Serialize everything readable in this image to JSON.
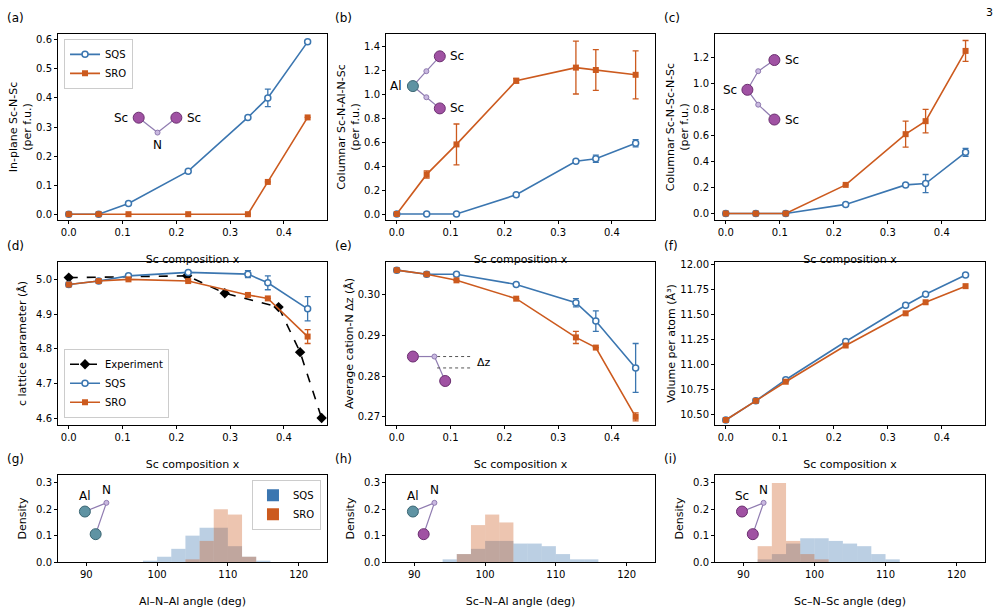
{
  "page_number": "3",
  "chart_data": [
    {
      "label": "(a)",
      "type": "line",
      "x_label": "Sc composition x",
      "y_label": "In-plane Sc-N-Sc\n(per f.u.)",
      "xlim": [
        -0.02,
        0.48
      ],
      "xticks": [
        {
          "value": 0,
          "label": "0.0"
        },
        0.1,
        0.2,
        0.3,
        0.4
      ],
      "ylim": [
        -0.02,
        0.62
      ],
      "yticks": [
        {
          "value": 0,
          "label": "0.0"
        },
        0.1,
        0.2,
        0.3,
        0.4,
        0.5,
        0.6
      ],
      "x": [
        0,
        0.0556,
        0.111,
        0.222,
        0.333,
        0.37,
        0.444
      ],
      "legend": "upper left",
      "inset": [
        "Sc",
        "N",
        "Sc"
      ],
      "series": [
        {
          "name": "SQS",
          "color": "#3b76b0",
          "marker": "open_circle",
          "line_style": "solid",
          "values": [
            0,
            0,
            0.037,
            0.148,
            0.333,
            0.4,
            0.593
          ],
          "errors": [
            0,
            0,
            0,
            0,
            0,
            0.03,
            0
          ]
        },
        {
          "name": "SRO",
          "color": "#cc5a1e",
          "marker": "square",
          "line_style": "solid",
          "values": [
            0,
            0,
            0,
            0,
            0,
            0.111,
            0.333
          ],
          "errors": [
            0,
            0,
            0,
            0,
            0,
            0,
            0
          ]
        }
      ]
    },
    {
      "label": "(b)",
      "type": "line",
      "x_label": "Sc composition x",
      "y_label": "Columnar Sc-N-Al-N-Sc\n(per f.u.)",
      "xlim": [
        -0.02,
        0.48
      ],
      "xticks": [
        {
          "value": 0,
          "label": "0.0"
        },
        0.1,
        0.2,
        0.3,
        0.4
      ],
      "ylim": [
        -0.05,
        1.5
      ],
      "yticks": [
        {
          "value": 0,
          "label": "0.0"
        },
        0.2,
        0.4,
        0.6,
        0.8,
        {
          "value": 1,
          "label": "1.0"
        },
        1.2,
        1.4
      ],
      "x": [
        0,
        0.0556,
        0.111,
        0.222,
        0.333,
        0.37,
        0.444
      ],
      "inset": [
        "Al",
        "Sc",
        "Sc"
      ],
      "series": [
        {
          "name": "SQS",
          "color": "#3b76b0",
          "marker": "open_circle",
          "line_style": "solid",
          "values": [
            0,
            0,
            0,
            0.16,
            0.44,
            0.46,
            0.59
          ],
          "errors": [
            0,
            0,
            0,
            0,
            0,
            0.03,
            0.03
          ]
        },
        {
          "name": "SRO",
          "color": "#cc5a1e",
          "marker": "square",
          "line_style": "solid",
          "values": [
            0,
            0.33,
            0.58,
            1.11,
            1.22,
            1.2,
            1.16
          ],
          "errors": [
            0,
            0.03,
            0.17,
            0.02,
            0.22,
            0.17,
            0.2
          ]
        }
      ]
    },
    {
      "label": "(c)",
      "type": "line",
      "x_label": "Sc composition x",
      "y_label": "Columnar Sc-N-Sc-N-Sc\n(per f.u.)",
      "xlim": [
        -0.02,
        0.48
      ],
      "xticks": [
        {
          "value": 0,
          "label": "0.0"
        },
        0.1,
        0.2,
        0.3,
        0.4
      ],
      "ylim": [
        -0.05,
        1.38
      ],
      "yticks": [
        {
          "value": 0,
          "label": "0.0"
        },
        0.2,
        0.4,
        0.6,
        0.8,
        {
          "value": 1,
          "label": "1.0"
        },
        1.2
      ],
      "x": [
        0,
        0.0556,
        0.111,
        0.222,
        0.333,
        0.37,
        0.444
      ],
      "inset": [
        "Sc",
        "Sc",
        "Sc"
      ],
      "series": [
        {
          "name": "SQS",
          "color": "#3b76b0",
          "marker": "open_circle",
          "line_style": "solid",
          "values": [
            0,
            0,
            0,
            0.07,
            0.22,
            0.23,
            0.47
          ],
          "errors": [
            0,
            0,
            0,
            0,
            0,
            0.07,
            0.03
          ]
        },
        {
          "name": "SRO",
          "color": "#cc5a1e",
          "marker": "square",
          "line_style": "solid",
          "values": [
            0,
            0,
            0,
            0.22,
            0.61,
            0.71,
            1.25
          ],
          "errors": [
            0,
            0,
            0,
            0,
            0.1,
            0.09,
            0.08
          ]
        }
      ]
    },
    {
      "label": "(d)",
      "type": "line",
      "x_label": "Sc composition x",
      "y_label": "c lattice parameter (Å)",
      "xlim": [
        -0.02,
        0.48
      ],
      "xticks": [
        {
          "value": 0,
          "label": "0.0"
        },
        0.1,
        0.2,
        0.3,
        0.4
      ],
      "ylim": [
        4.58,
        5.05
      ],
      "yticks": [
        4.6,
        4.7,
        4.8,
        4.9,
        {
          "value": 5,
          "label": "5.0"
        }
      ],
      "x": [
        0,
        0.0556,
        0.111,
        0.222,
        0.333,
        0.37,
        0.444
      ],
      "legend": "lower left",
      "series": [
        {
          "name": "Experiment",
          "color": "#000000",
          "marker": "diamond",
          "line_style": "dashed",
          "x": [
            0,
            0.22,
            0.29,
            0.39,
            0.43,
            0.47
          ],
          "values": [
            5.005,
            5.01,
            4.96,
            4.92,
            4.79,
            4.6
          ]
        },
        {
          "name": "SQS",
          "color": "#3b76b0",
          "marker": "open_circle",
          "line_style": "solid",
          "values": [
            4.985,
            4.995,
            5.01,
            5.02,
            5.015,
            4.99,
            4.915
          ],
          "errors": [
            0,
            0,
            0,
            0,
            0.01,
            0.02,
            0.035
          ]
        },
        {
          "name": "SRO",
          "color": "#cc5a1e",
          "marker": "square",
          "line_style": "solid",
          "values": [
            4.985,
            4.995,
            5.0,
            4.995,
            4.955,
            4.945,
            4.835
          ],
          "errors": [
            0,
            0,
            0,
            0,
            0,
            0,
            0.02
          ]
        }
      ]
    },
    {
      "label": "(e)",
      "type": "line",
      "x_label": "Sc composition x",
      "y_label": "Average cation-N Δz (Å)",
      "xlim": [
        -0.02,
        0.48
      ],
      "xticks": [
        {
          "value": 0,
          "label": "0.0"
        },
        0.1,
        0.2,
        0.3,
        0.4
      ],
      "ylim": [
        0.268,
        0.308
      ],
      "yticks": [
        0.27,
        0.28,
        0.29,
        {
          "value": 0.3,
          "label": "0.30"
        }
      ],
      "x": [
        0,
        0.0556,
        0.111,
        0.222,
        0.333,
        0.37,
        0.444
      ],
      "inset": [
        "Δz"
      ],
      "series": [
        {
          "name": "SQS",
          "color": "#3b76b0",
          "marker": "open_circle",
          "line_style": "solid",
          "values": [
            0.306,
            0.305,
            0.305,
            0.3025,
            0.298,
            0.2935,
            0.282
          ],
          "errors": [
            0,
            0,
            0,
            0,
            0.001,
            0.0025,
            0.006
          ]
        },
        {
          "name": "SRO",
          "color": "#cc5a1e",
          "marker": "square",
          "line_style": "solid",
          "values": [
            0.306,
            0.305,
            0.3035,
            0.299,
            0.2895,
            0.287,
            0.27
          ],
          "errors": [
            0,
            0,
            0,
            0,
            0.0015,
            0,
            0.001
          ]
        }
      ]
    },
    {
      "label": "(f)",
      "type": "line",
      "x_label": "Sc composition x",
      "y_label": "Volume per atom (Å³)",
      "xlim": [
        -0.02,
        0.48
      ],
      "xticks": [
        {
          "value": 0,
          "label": "0.0"
        },
        0.1,
        0.2,
        0.3,
        0.4
      ],
      "ylim": [
        10.4,
        12.02
      ],
      "yticks": [
        {
          "value": 10.5,
          "label": "10.50"
        },
        10.75,
        {
          "value": 11,
          "label": "11.00"
        },
        11.25,
        {
          "value": 11.5,
          "label": "11.50"
        },
        11.75,
        {
          "value": 12,
          "label": "12.00"
        }
      ],
      "x": [
        0,
        0.0556,
        0.111,
        0.222,
        0.333,
        0.37,
        0.444
      ],
      "series": [
        {
          "name": "SQS",
          "color": "#3b76b0",
          "marker": "open_circle",
          "line_style": "solid",
          "values": [
            10.45,
            10.64,
            10.85,
            11.23,
            11.59,
            11.7,
            11.89
          ]
        },
        {
          "name": "SRO",
          "color": "#cc5a1e",
          "marker": "square",
          "line_style": "solid",
          "values": [
            10.45,
            10.64,
            10.83,
            11.19,
            11.51,
            11.62,
            11.78
          ]
        }
      ]
    },
    {
      "label": "(g)",
      "type": "histogram",
      "x_label": "Al–N–Al angle (deg)",
      "y_label": "Density",
      "xlim": [
        86,
        124
      ],
      "xticks": [
        90,
        100,
        110,
        120
      ],
      "ylim": [
        0,
        0.33
      ],
      "yticks": [
        {
          "value": 0,
          "label": "0.0"
        },
        0.1,
        0.2,
        0.3
      ],
      "bins": [
        98,
        100,
        102,
        104,
        106,
        108,
        110,
        112,
        114,
        116
      ],
      "legend": "upper right",
      "inset": [
        "Al",
        "N"
      ],
      "series": [
        {
          "name": "SQS",
          "color": "#3b76b0",
          "values": [
            0.005,
            0.02,
            0.05,
            0.1,
            0.13,
            0.13,
            0.06,
            0.02,
            0.005
          ]
        },
        {
          "name": "SRO",
          "color": "#cc5a1e",
          "values": [
            0,
            0,
            0,
            0.01,
            0.08,
            0.2,
            0.18,
            0.02,
            0
          ]
        }
      ]
    },
    {
      "label": "(h)",
      "type": "histogram",
      "x_label": "Sc–N–Al angle (deg)",
      "y_label": "Density",
      "xlim": [
        86,
        124
      ],
      "xticks": [
        90,
        100,
        110,
        120
      ],
      "ylim": [
        0,
        0.33
      ],
      "yticks": [
        {
          "value": 0,
          "label": "0.0"
        },
        0.1,
        0.2,
        0.3
      ],
      "bins": [
        94,
        96,
        98,
        100,
        102,
        104,
        106,
        108,
        110,
        112,
        114,
        116
      ],
      "inset": [
        "Al",
        "N"
      ],
      "series": [
        {
          "name": "SQS",
          "color": "#3b76b0",
          "values": [
            0.01,
            0.03,
            0.05,
            0.08,
            0.08,
            0.07,
            0.07,
            0.06,
            0.03,
            0.01,
            0.01
          ]
        },
        {
          "name": "SRO",
          "color": "#cc5a1e",
          "values": [
            0,
            0.03,
            0.14,
            0.18,
            0.15,
            0,
            0,
            0,
            0,
            0,
            0
          ]
        }
      ]
    },
    {
      "label": "(i)",
      "type": "histogram",
      "x_label": "Sc–N–Sc angle (deg)",
      "y_label": "Density",
      "xlim": [
        86,
        124
      ],
      "xticks": [
        90,
        100,
        110,
        120
      ],
      "ylim": [
        0,
        0.33
      ],
      "yticks": [
        {
          "value": 0,
          "label": "0.0"
        },
        0.1,
        0.2,
        0.3
      ],
      "bins": [
        92,
        94,
        96,
        98,
        100,
        102,
        104,
        106,
        108,
        110,
        112
      ],
      "inset": [
        "Sc",
        "N"
      ],
      "series": [
        {
          "name": "SQS",
          "color": "#3b76b0",
          "values": [
            0.01,
            0.03,
            0.07,
            0.09,
            0.09,
            0.08,
            0.07,
            0.06,
            0.03,
            0.01
          ]
        },
        {
          "name": "SRO",
          "color": "#cc5a1e",
          "values": [
            0.06,
            0.3,
            0.08,
            0.03,
            0.01,
            0,
            0,
            0,
            0,
            0
          ]
        }
      ]
    }
  ]
}
